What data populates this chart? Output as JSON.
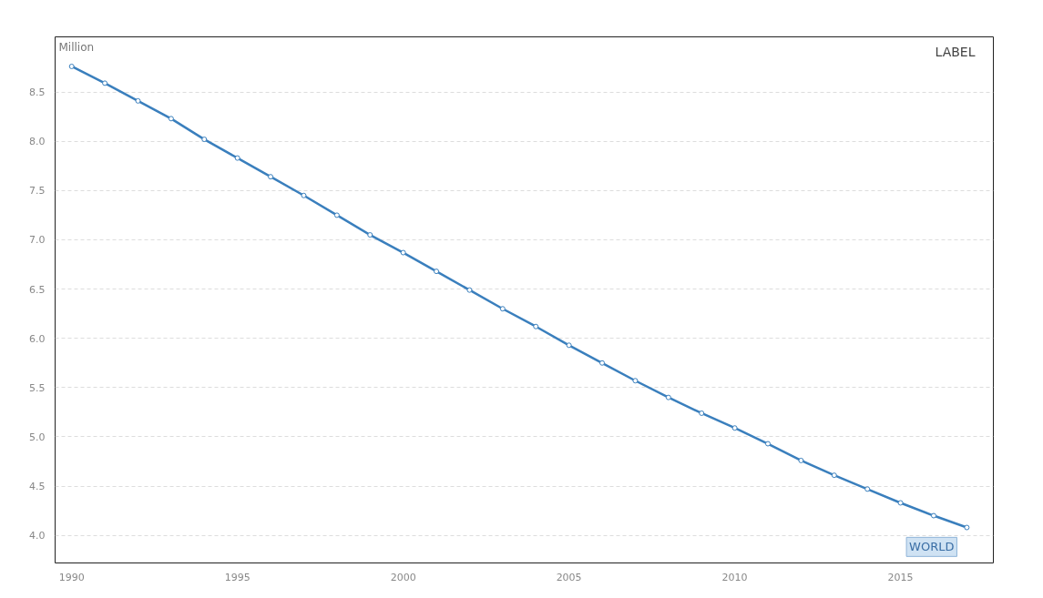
{
  "chart_data": {
    "type": "line",
    "ylabel": "Million",
    "x": [
      1990,
      1991,
      1992,
      1993,
      1994,
      1995,
      1996,
      1997,
      1998,
      1999,
      2000,
      2001,
      2002,
      2003,
      2004,
      2005,
      2006,
      2007,
      2008,
      2009,
      2010,
      2011,
      2012,
      2013,
      2014,
      2015,
      2016,
      2017
    ],
    "series": [
      {
        "name": "WORLD",
        "color": "#3a7fbd",
        "values": [
          8.76,
          8.59,
          8.41,
          8.23,
          8.02,
          7.83,
          7.64,
          7.45,
          7.25,
          7.05,
          6.87,
          6.68,
          6.49,
          6.3,
          6.12,
          5.93,
          5.75,
          5.57,
          5.4,
          5.24,
          5.09,
          4.93,
          4.76,
          4.61,
          4.47,
          4.33,
          4.2,
          4.08
        ]
      }
    ],
    "xlim": [
      1989.5,
      2017.8
    ],
    "ylim": [
      3.72,
      9.06
    ],
    "xticks": [
      1990,
      1995,
      2000,
      2005,
      2010,
      2015
    ],
    "yticks": [
      {
        "value": 4.0,
        "label": "4.0"
      },
      {
        "value": 4.5,
        "label": "4.5"
      },
      {
        "value": 5.0,
        "label": "5.0"
      },
      {
        "value": 5.5,
        "label": "5.5"
      },
      {
        "value": 6.0,
        "label": "6.0"
      },
      {
        "value": 6.5,
        "label": "6.5"
      },
      {
        "value": 7.0,
        "label": "7.0"
      },
      {
        "value": 7.5,
        "label": "7.5"
      },
      {
        "value": 8.0,
        "label": "8.0"
      },
      {
        "value": 8.5,
        "label": "8.5"
      }
    ],
    "grid": "y",
    "marker": "circle",
    "line_style": "solid",
    "legend": false,
    "annotations": [
      "LABEL"
    ]
  }
}
